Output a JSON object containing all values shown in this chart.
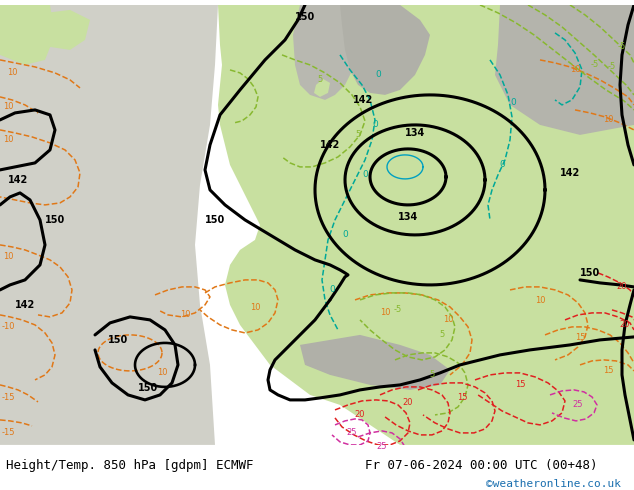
{
  "title_left": "Height/Temp. 850 hPa [gdpm] ECMWF",
  "title_right": "Fr 07-06-2024 00:00 UTC (00+48)",
  "credit": "©weatheronline.co.uk",
  "credit_color": "#1a6faf",
  "font_size_title": 9,
  "font_size_credit": 8,
  "fig_width": 6.34,
  "fig_height": 4.9,
  "dpi": 100,
  "bg_map": "#d0d0c8",
  "bg_green_light": "#c8e0a0",
  "bg_gray_land": "#c0c0b8",
  "black": "#000000",
  "teal": "#00a898",
  "cyan_blue": "#00a0c0",
  "orange": "#e07818",
  "green_yel": "#88b830",
  "red": "#e02020",
  "magenta": "#d030a0",
  "lw_black": 2.2,
  "lw_iso": 1.1
}
